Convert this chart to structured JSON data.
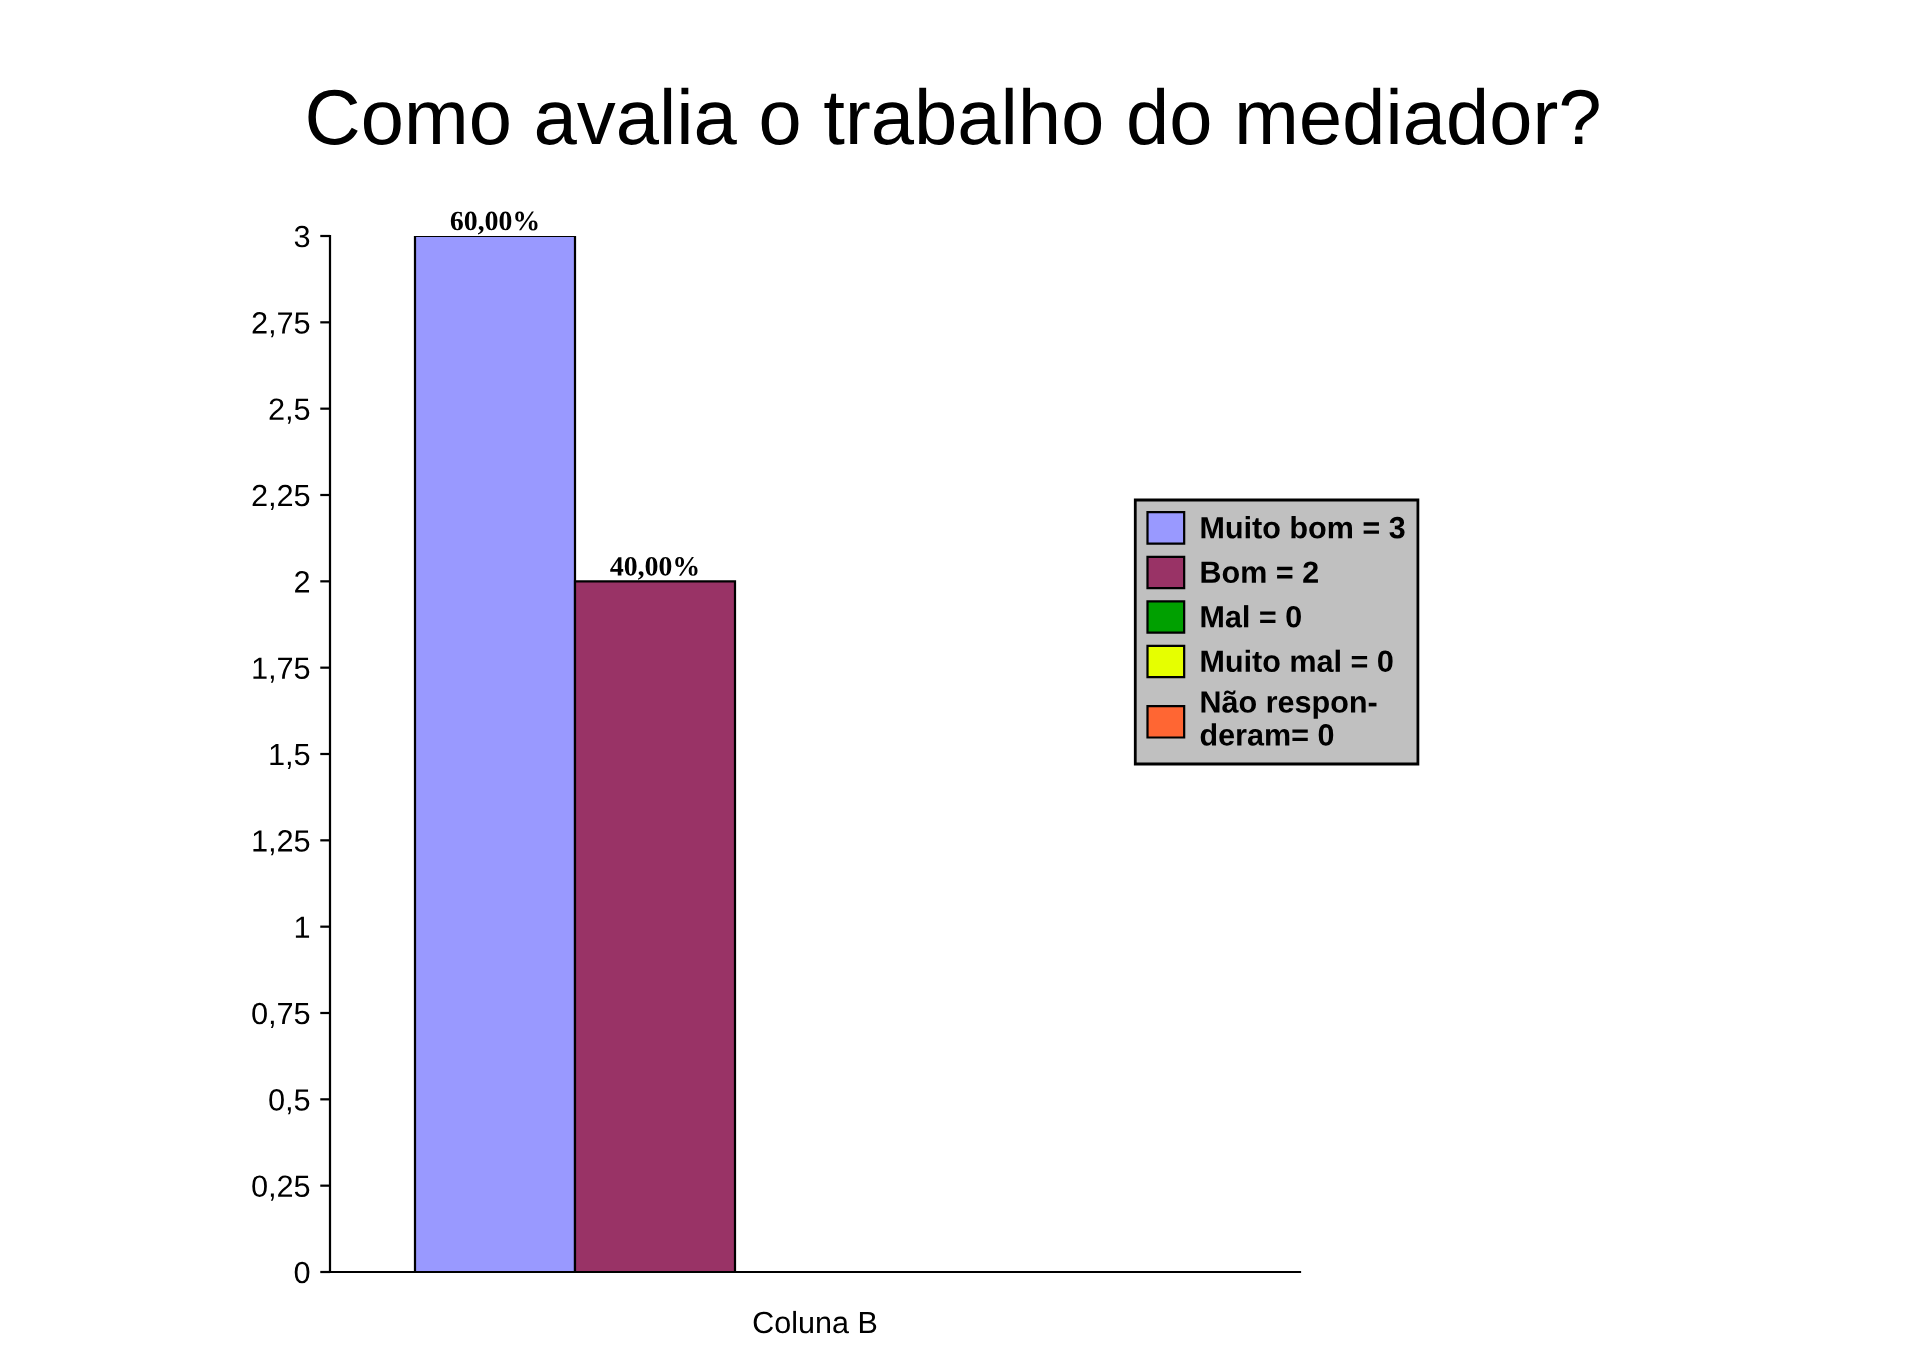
{
  "chart_data": {
    "type": "bar",
    "title": "Como avalia o trabalho do mediador?",
    "categories": [
      "Coluna B"
    ],
    "series": [
      {
        "name": "Muito bom = 3",
        "color": "#9999ff",
        "values": [
          3
        ]
      },
      {
        "name": "Bom = 2",
        "color": "#993366",
        "values": [
          2
        ]
      },
      {
        "name": "Mal = 0",
        "color": "#00a000",
        "values": [
          0
        ]
      },
      {
        "name": "Muito mal = 0",
        "color": "#e6ff00",
        "values": [
          0
        ]
      },
      {
        "name": "Não respon-\nderam= 0",
        "color": "#ff6633",
        "values": [
          0
        ]
      }
    ],
    "ylim": [
      0,
      3
    ],
    "yticks": [
      0,
      {
        "value": 0.25,
        "label": "0,25"
      },
      {
        "value": 0.5,
        "label": "0,5"
      },
      {
        "value": 0.75,
        "label": "0,75"
      },
      1,
      {
        "value": 1.25,
        "label": "1,25"
      },
      {
        "value": 1.5,
        "label": "1,5"
      },
      {
        "value": 1.75,
        "label": "1,75"
      },
      2,
      {
        "value": 2.25,
        "label": "2,25"
      },
      {
        "value": 2.5,
        "label": "2,5"
      },
      {
        "value": 2.75,
        "label": "2,75"
      },
      3
    ],
    "annotations": [
      "60,00%",
      "40,00%"
    ],
    "grid": false,
    "legend": "right"
  }
}
